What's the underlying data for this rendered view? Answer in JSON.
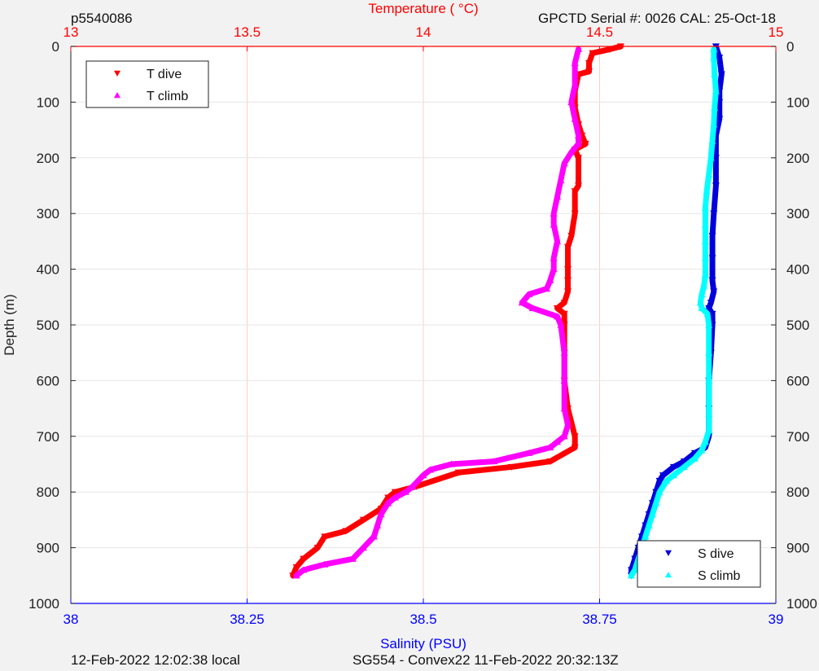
{
  "header": {
    "profile_id": "p5540086",
    "calibration": "GPCTD Serial #: 0026 CAL: 25-Oct-18"
  },
  "footer": {
    "local_time": "12-Feb-2022 12:02:38 local",
    "mission": "SG554 - Convex22 11-Feb-2022 20:32:13Z"
  },
  "colors": {
    "t_dive": "#ff0000",
    "t_climb": "#ff00ff",
    "s_dive": "#0000dd",
    "s_climb": "#00ffff",
    "temp_axis": "#ff0000",
    "sal_axis": "#0000ff",
    "grid": "#ffcccc",
    "plot_bg": "#ffffff",
    "figure_bg": "#f2f2f2"
  },
  "chart_data": {
    "type": "scatter",
    "ylabel": "Depth (m)",
    "temperature_axis": {
      "label": "Temperature (    °C)",
      "range": [
        13,
        15
      ],
      "ticks": [
        "13",
        "13.5",
        "14",
        "14.5",
        "15"
      ]
    },
    "salinity_axis": {
      "label": "Salinity (PSU)",
      "range": [
        38,
        39
      ],
      "ticks": [
        "38",
        "38.25",
        "38.5",
        "38.75",
        "39"
      ]
    },
    "depth_axis": {
      "range": [
        0,
        1000
      ],
      "reversed": true,
      "ticks": [
        "0",
        "100",
        "200",
        "300",
        "400",
        "500",
        "600",
        "700",
        "800",
        "900",
        "1000"
      ]
    },
    "grid": true,
    "legends": [
      {
        "placement": "top-left",
        "entries": [
          "T dive",
          "T climb"
        ]
      },
      {
        "placement": "bottom-right",
        "entries": [
          "S dive",
          "S climb"
        ]
      }
    ],
    "series": [
      {
        "name": "T dive",
        "axis": "temperature",
        "marker": "triangle-down",
        "points": [
          [
            14.56,
            0
          ],
          [
            14.53,
            5
          ],
          [
            14.48,
            12
          ],
          [
            14.47,
            30
          ],
          [
            14.47,
            45
          ],
          [
            14.44,
            50
          ],
          [
            14.43,
            80
          ],
          [
            14.43,
            110
          ],
          [
            14.44,
            140
          ],
          [
            14.45,
            160
          ],
          [
            14.46,
            175
          ],
          [
            14.43,
            185
          ],
          [
            14.44,
            200
          ],
          [
            14.44,
            250
          ],
          [
            14.43,
            260
          ],
          [
            14.43,
            300
          ],
          [
            14.42,
            340
          ],
          [
            14.41,
            360
          ],
          [
            14.41,
            400
          ],
          [
            14.41,
            420
          ],
          [
            14.41,
            440
          ],
          [
            14.4,
            460
          ],
          [
            14.38,
            470
          ],
          [
            14.4,
            480
          ],
          [
            14.4,
            500
          ],
          [
            14.4,
            550
          ],
          [
            14.4,
            600
          ],
          [
            14.41,
            650
          ],
          [
            14.43,
            700
          ],
          [
            14.43,
            720
          ],
          [
            14.36,
            745
          ],
          [
            14.25,
            755
          ],
          [
            14.1,
            765
          ],
          [
            13.98,
            790
          ],
          [
            13.92,
            800
          ],
          [
            13.9,
            810
          ],
          [
            13.88,
            830
          ],
          [
            13.83,
            850
          ],
          [
            13.78,
            870
          ],
          [
            13.72,
            880
          ],
          [
            13.7,
            900
          ],
          [
            13.66,
            920
          ],
          [
            13.64,
            935
          ],
          [
            13.63,
            950
          ]
        ]
      },
      {
        "name": "T climb",
        "axis": "temperature",
        "marker": "triangle-up",
        "points": [
          [
            13.64,
            950
          ],
          [
            13.66,
            940
          ],
          [
            13.72,
            930
          ],
          [
            13.8,
            920
          ],
          [
            13.83,
            900
          ],
          [
            13.86,
            880
          ],
          [
            13.87,
            860
          ],
          [
            13.88,
            840
          ],
          [
            13.9,
            820
          ],
          [
            13.92,
            810
          ],
          [
            13.95,
            800
          ],
          [
            13.97,
            790
          ],
          [
            14.0,
            770
          ],
          [
            14.02,
            760
          ],
          [
            14.08,
            750
          ],
          [
            14.2,
            745
          ],
          [
            14.3,
            730
          ],
          [
            14.36,
            720
          ],
          [
            14.38,
            710
          ],
          [
            14.4,
            700
          ],
          [
            14.41,
            680
          ],
          [
            14.4,
            650
          ],
          [
            14.4,
            600
          ],
          [
            14.4,
            550
          ],
          [
            14.39,
            500
          ],
          [
            14.38,
            485
          ],
          [
            14.31,
            470
          ],
          [
            14.28,
            460
          ],
          [
            14.3,
            445
          ],
          [
            14.35,
            435
          ],
          [
            14.36,
            420
          ],
          [
            14.37,
            400
          ],
          [
            14.37,
            380
          ],
          [
            14.38,
            350
          ],
          [
            14.37,
            320
          ],
          [
            14.37,
            300
          ],
          [
            14.38,
            270
          ],
          [
            14.39,
            240
          ],
          [
            14.4,
            210
          ],
          [
            14.42,
            190
          ],
          [
            14.44,
            175
          ],
          [
            14.44,
            160
          ],
          [
            14.43,
            130
          ],
          [
            14.42,
            100
          ],
          [
            14.43,
            70
          ],
          [
            14.43,
            30
          ],
          [
            14.44,
            5
          ]
        ]
      },
      {
        "name": "S dive",
        "axis": "salinity",
        "marker": "triangle-down",
        "points": [
          [
            38.915,
            0
          ],
          [
            38.92,
            20
          ],
          [
            38.923,
            50
          ],
          [
            38.92,
            80
          ],
          [
            38.92,
            100
          ],
          [
            38.92,
            130
          ],
          [
            38.915,
            160
          ],
          [
            38.915,
            200
          ],
          [
            38.915,
            250
          ],
          [
            38.912,
            300
          ],
          [
            38.91,
            340
          ],
          [
            38.91,
            380
          ],
          [
            38.91,
            420
          ],
          [
            38.912,
            440
          ],
          [
            38.908,
            460
          ],
          [
            38.905,
            470
          ],
          [
            38.91,
            480
          ],
          [
            38.91,
            500
          ],
          [
            38.908,
            550
          ],
          [
            38.905,
            600
          ],
          [
            38.905,
            650
          ],
          [
            38.905,
            700
          ],
          [
            38.9,
            720
          ],
          [
            38.885,
            730
          ],
          [
            38.87,
            745
          ],
          [
            38.855,
            755
          ],
          [
            38.84,
            770
          ],
          [
            38.835,
            780
          ],
          [
            38.83,
            800
          ],
          [
            38.825,
            820
          ],
          [
            38.82,
            840
          ],
          [
            38.815,
            860
          ],
          [
            38.81,
            880
          ],
          [
            38.805,
            900
          ],
          [
            38.8,
            920
          ],
          [
            38.795,
            940
          ],
          [
            38.795,
            950
          ]
        ]
      },
      {
        "name": "S climb",
        "axis": "salinity",
        "marker": "triangle-up",
        "points": [
          [
            38.795,
            950
          ],
          [
            38.8,
            940
          ],
          [
            38.805,
            920
          ],
          [
            38.81,
            900
          ],
          [
            38.815,
            880
          ],
          [
            38.82,
            860
          ],
          [
            38.825,
            840
          ],
          [
            38.83,
            820
          ],
          [
            38.835,
            800
          ],
          [
            38.845,
            780
          ],
          [
            38.855,
            770
          ],
          [
            38.87,
            755
          ],
          [
            38.885,
            740
          ],
          [
            38.895,
            725
          ],
          [
            38.9,
            710
          ],
          [
            38.905,
            690
          ],
          [
            38.905,
            660
          ],
          [
            38.905,
            600
          ],
          [
            38.905,
            550
          ],
          [
            38.905,
            500
          ],
          [
            38.903,
            480
          ],
          [
            38.895,
            470
          ],
          [
            38.893,
            460
          ],
          [
            38.895,
            445
          ],
          [
            38.898,
            430
          ],
          [
            38.9,
            410
          ],
          [
            38.9,
            380
          ],
          [
            38.9,
            350
          ],
          [
            38.9,
            320
          ],
          [
            38.9,
            290
          ],
          [
            38.902,
            260
          ],
          [
            38.905,
            230
          ],
          [
            38.908,
            200
          ],
          [
            38.91,
            170
          ],
          [
            38.912,
            140
          ],
          [
            38.913,
            110
          ],
          [
            38.915,
            80
          ],
          [
            38.913,
            50
          ],
          [
            38.912,
            20
          ],
          [
            38.912,
            5
          ]
        ]
      }
    ]
  }
}
